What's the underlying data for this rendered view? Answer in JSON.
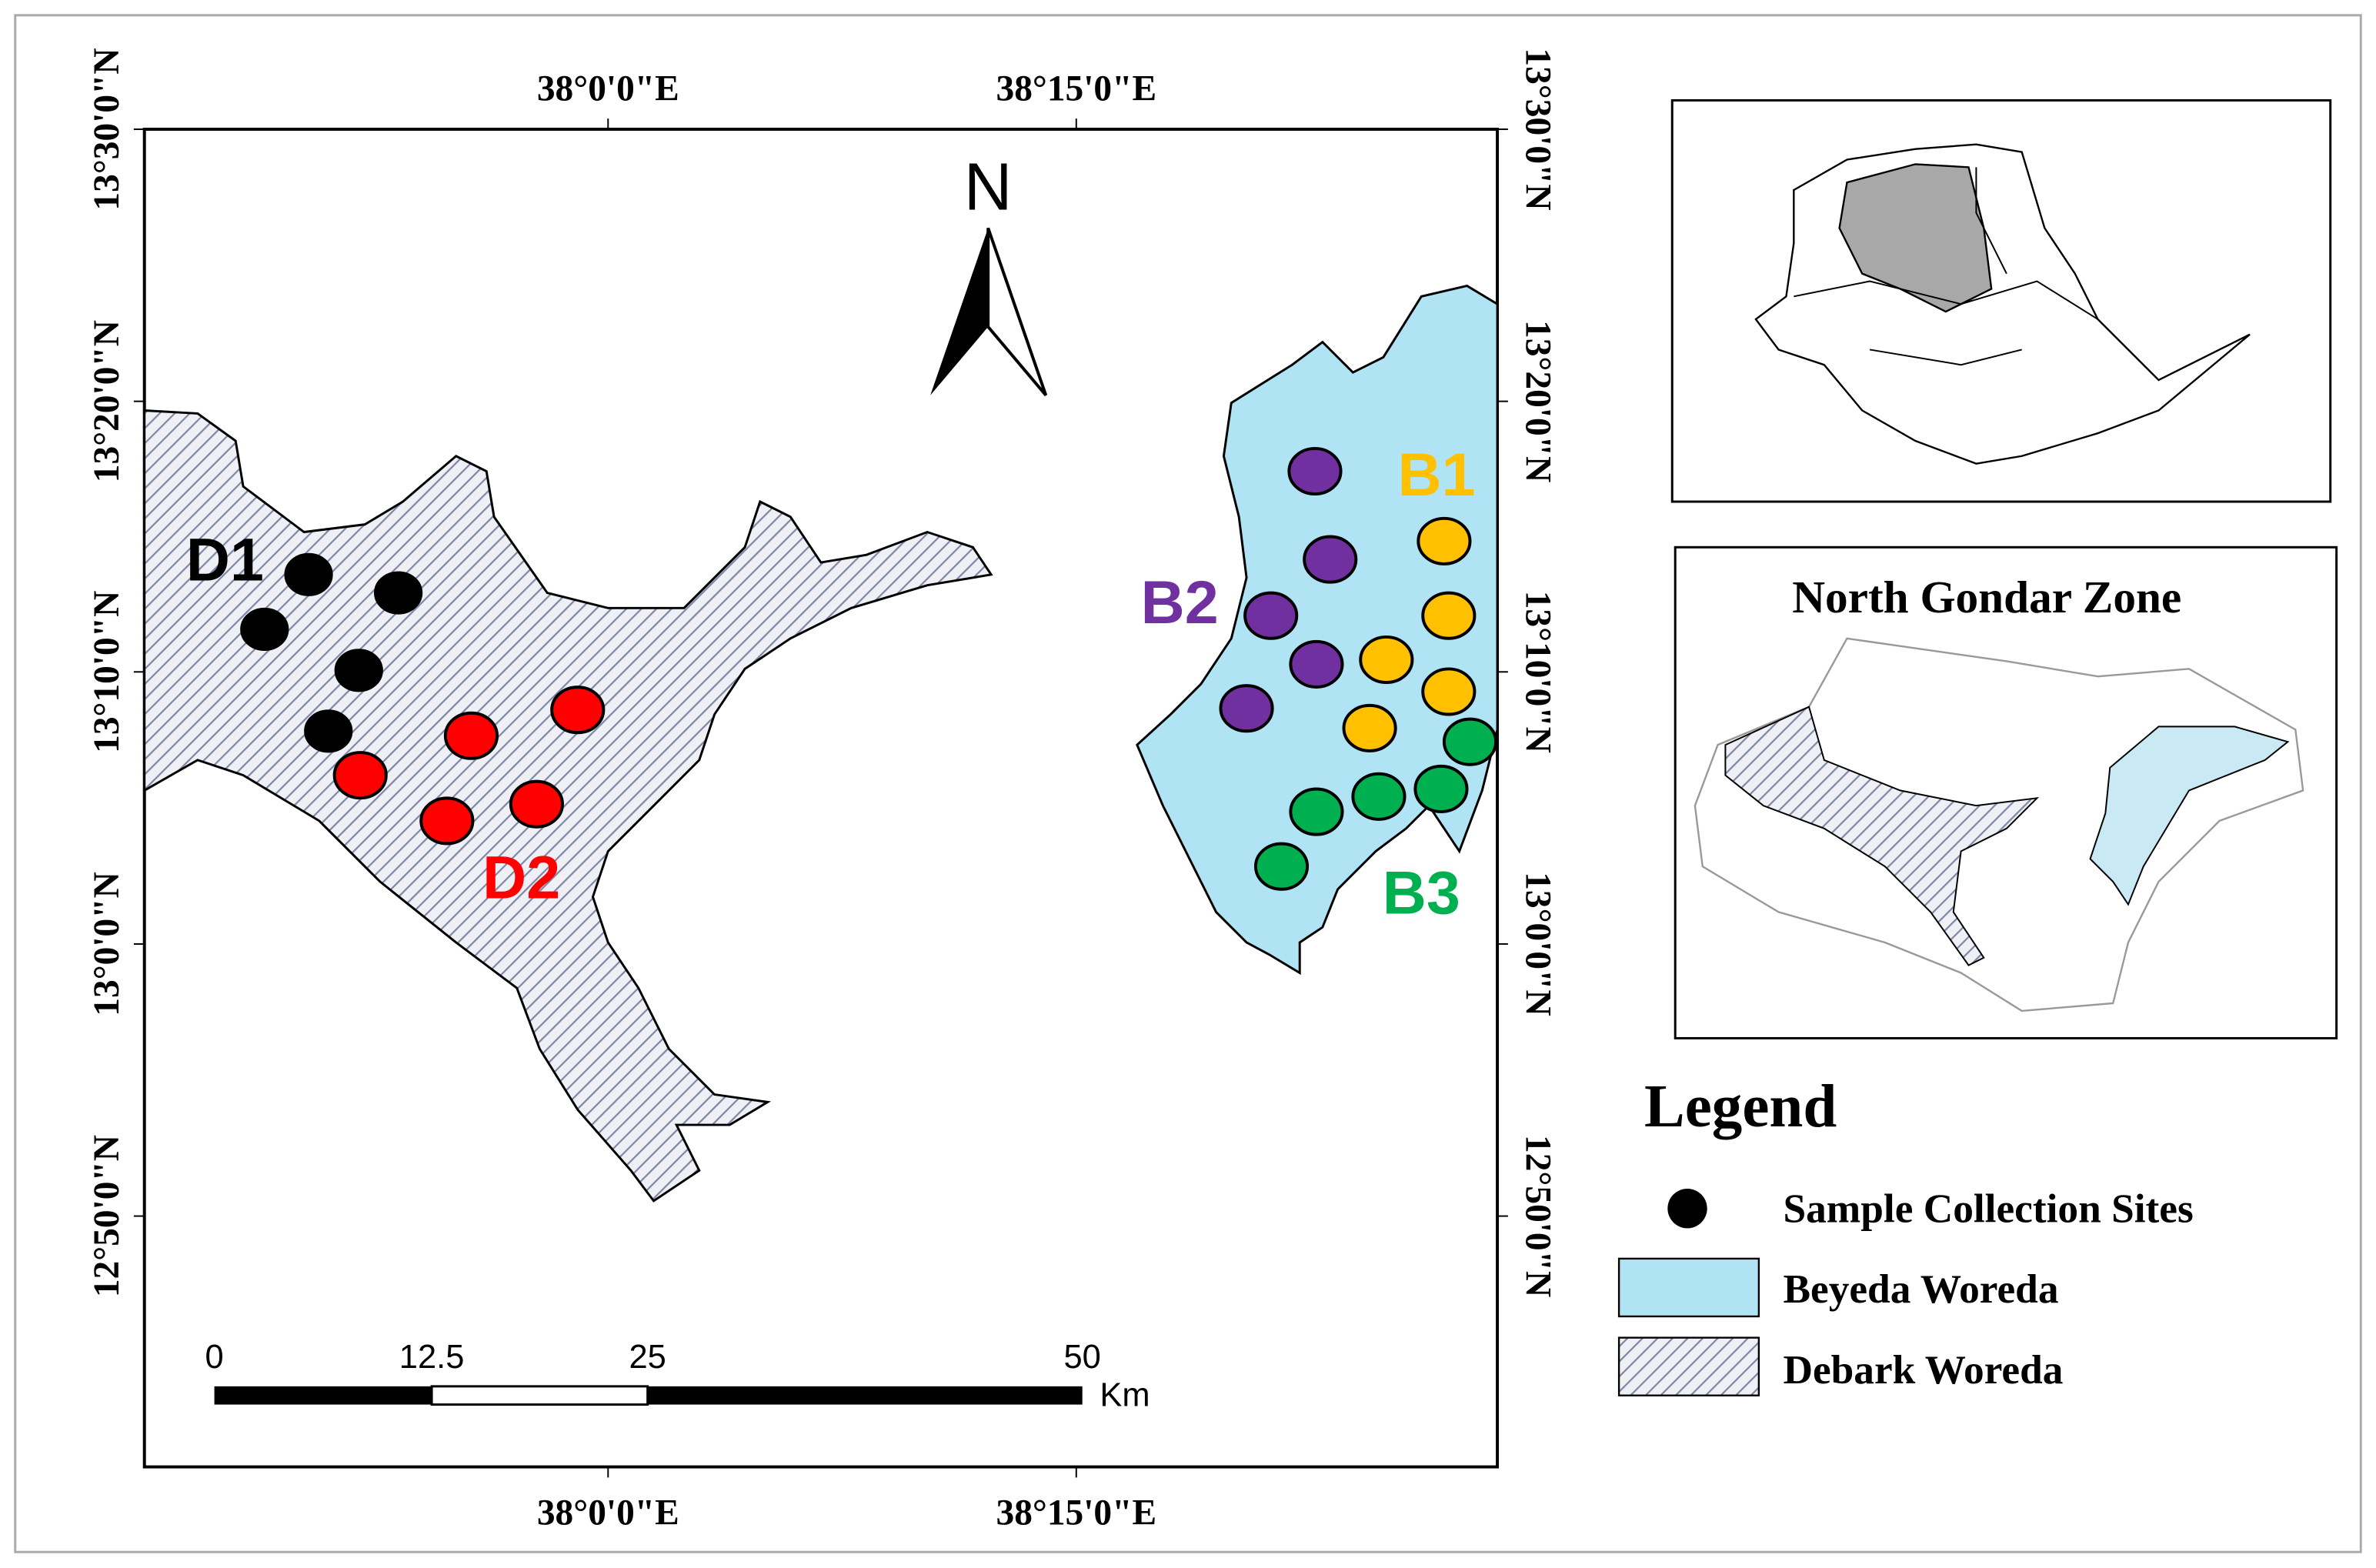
{
  "map": {
    "north_arrow": "N",
    "lon_labels": [
      "38°0'0\"E",
      "38°15'0\"E"
    ],
    "lat_labels": [
      "13°30'0\"N",
      "13°20'0\"N",
      "13°10'0\"N",
      "13°0'0\"N",
      "12°50'0\"N"
    ],
    "site_groups": [
      "D1",
      "D2",
      "B1",
      "B2",
      "B3"
    ],
    "scale_bar": {
      "ticks": [
        "0",
        "12.5",
        "25",
        "50"
      ],
      "unit": "Km"
    }
  },
  "inset": {
    "title": "North Gondar Zone"
  },
  "legend": {
    "title": "Legend",
    "items": [
      "Sample Collection Sites",
      "Beyeda Woreda",
      "Debark Woreda"
    ]
  }
}
